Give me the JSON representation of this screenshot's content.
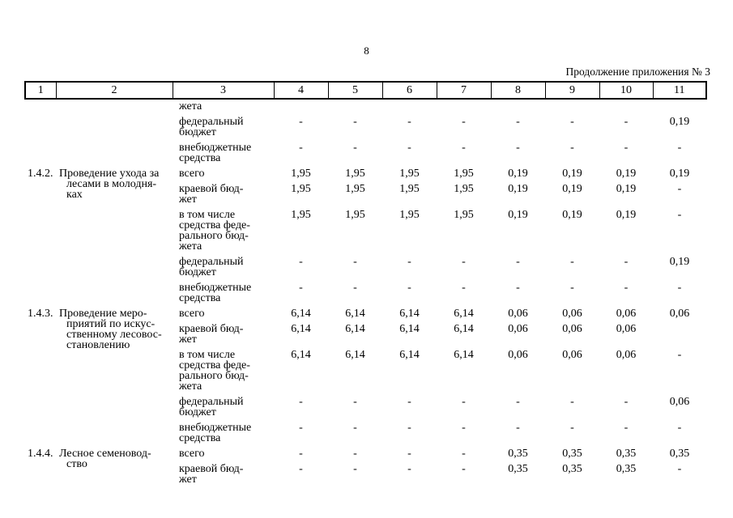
{
  "page": {
    "number": "8",
    "continuation": "Продолжение приложения № 3"
  },
  "table": {
    "header": [
      "1",
      "2",
      "3",
      "4",
      "5",
      "6",
      "7",
      "8",
      "9",
      "10",
      "11"
    ],
    "groups": [
      {
        "num": "",
        "name": "",
        "subrows": [
          {
            "label": "жета",
            "values": [
              "",
              "",
              "",
              "",
              "",
              "",
              "",
              ""
            ]
          },
          {
            "label": "федеральный\nбюджет",
            "values": [
              "-",
              "-",
              "-",
              "-",
              "-",
              "-",
              "-",
              "0,19"
            ]
          },
          {
            "label": "внебюджетные\nсредства",
            "values": [
              "-",
              "-",
              "-",
              "-",
              "-",
              "-",
              "-",
              "-"
            ]
          }
        ]
      },
      {
        "num": "1.4.2.",
        "name": "Проведение ухода за\nлесами в молодня-\nках",
        "subrows": [
          {
            "label": "всего",
            "values": [
              "1,95",
              "1,95",
              "1,95",
              "1,95",
              "0,19",
              "0,19",
              "0,19",
              "0,19"
            ]
          },
          {
            "label": "краевой бюд-\nжет",
            "values": [
              "1,95",
              "1,95",
              "1,95",
              "1,95",
              "0,19",
              "0,19",
              "0,19",
              "-"
            ]
          },
          {
            "label": "в том числе\nсредства феде-\nрального бюд-\nжета",
            "values": [
              "1,95",
              "1,95",
              "1,95",
              "1,95",
              "0,19",
              "0,19",
              "0,19",
              "-"
            ]
          },
          {
            "label": "федеральный\nбюджет",
            "values": [
              "-",
              "-",
              "-",
              "-",
              "-",
              "-",
              "-",
              "0,19"
            ]
          },
          {
            "label": "внебюджетные\nсредства",
            "values": [
              "-",
              "-",
              "-",
              "-",
              "-",
              "-",
              "-",
              "-"
            ]
          }
        ]
      },
      {
        "num": "1.4.3.",
        "name": "Проведение меро-\nприятий по искус-\nственному лесовос-\nстановлению",
        "subrows": [
          {
            "label": "всего",
            "values": [
              "6,14",
              "6,14",
              "6,14",
              "6,14",
              "0,06",
              "0,06",
              "0,06",
              "0,06"
            ]
          },
          {
            "label": "краевой бюд-\nжет",
            "values": [
              "6,14",
              "6,14",
              "6,14",
              "6,14",
              "0,06",
              "0,06",
              "0,06",
              ""
            ]
          },
          {
            "label": "в том числе\nсредства феде-\nрального бюд-\nжета",
            "values": [
              "6,14",
              "6,14",
              "6,14",
              "6,14",
              "0,06",
              "0,06",
              "0,06",
              "-"
            ]
          },
          {
            "label": "федеральный\nбюджет",
            "values": [
              "-",
              "-",
              "-",
              "-",
              "-",
              "-",
              "-",
              "0,06"
            ]
          },
          {
            "label": "внебюджетные\nсредства",
            "values": [
              "-",
              "-",
              "-",
              "-",
              "-",
              "-",
              "-",
              "-"
            ]
          }
        ]
      },
      {
        "num": "1.4.4.",
        "name": "Лесное семеновод-\nство",
        "subrows": [
          {
            "label": "всего",
            "values": [
              "-",
              "-",
              "-",
              "-",
              "0,35",
              "0,35",
              "0,35",
              "0,35"
            ]
          },
          {
            "label": "краевой бюд-\nжет",
            "values": [
              "-",
              "-",
              "-",
              "-",
              "0,35",
              "0,35",
              "0,35",
              "-"
            ]
          }
        ]
      }
    ]
  }
}
